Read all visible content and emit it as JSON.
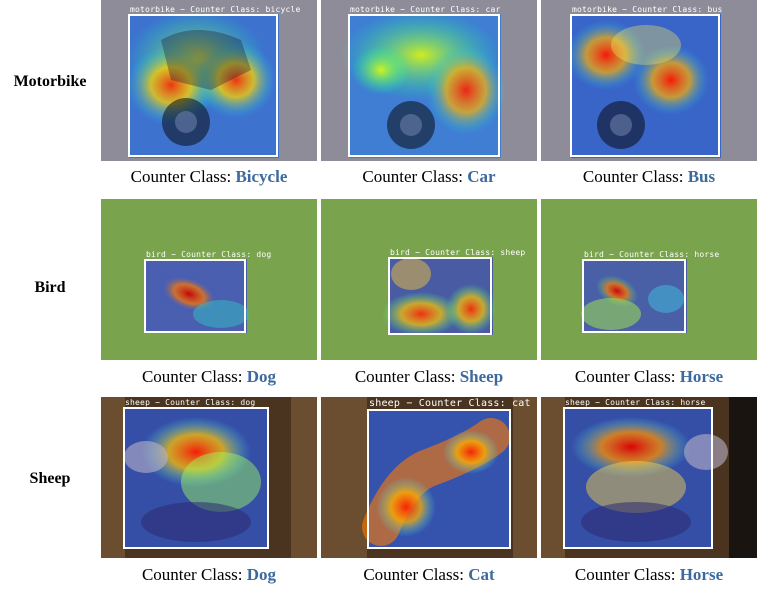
{
  "rows": [
    {
      "label": "Motorbike",
      "scene": "road",
      "cells": [
        {
          "overlay": "motorbike − Counter Class: bicycle",
          "caption_prefix": "Counter Class: ",
          "caption_class": "Bicycle"
        },
        {
          "overlay": "motorbike − Counter Class: car",
          "caption_prefix": "Counter Class: ",
          "caption_class": "Car"
        },
        {
          "overlay": "motorbike − Counter Class: bus",
          "caption_prefix": "Counter Class: ",
          "caption_class": "Bus"
        }
      ]
    },
    {
      "label": "Bird",
      "scene": "grass",
      "cells": [
        {
          "overlay": "bird − Counter Class: dog",
          "caption_prefix": "Counter Class: ",
          "caption_class": "Dog"
        },
        {
          "overlay": "bird − Counter Class: sheep",
          "caption_prefix": "Counter Class: ",
          "caption_class": "Sheep"
        },
        {
          "overlay": "bird − Counter Class: horse",
          "caption_prefix": "Counter Class: ",
          "caption_class": "Horse"
        }
      ]
    },
    {
      "label": "Sheep",
      "scene": "barn",
      "cells": [
        {
          "overlay": "sheep − Counter Class: dog",
          "caption_prefix": "Counter Class: ",
          "caption_class": "Dog"
        },
        {
          "overlay": "sheep − Counter Class: cat",
          "caption_prefix": "Counter Class: ",
          "caption_class": "Cat"
        },
        {
          "overlay": "sheep − Counter Class: horse",
          "caption_prefix": "Counter Class: ",
          "caption_class": "Horse"
        }
      ]
    }
  ],
  "colors": {
    "caption_class": "#3d6a9e",
    "box": "#ffffff"
  }
}
